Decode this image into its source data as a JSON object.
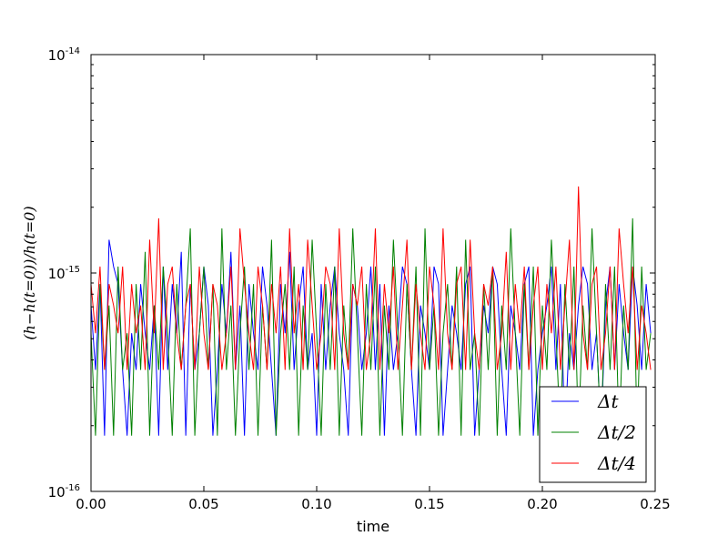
{
  "chart_data": {
    "type": "line",
    "title": "",
    "xlabel": "time",
    "ylabel": "(h−h(t=0))/h(t=0)",
    "x_scale": "linear",
    "y_scale": "log",
    "xlim": [
      0.0,
      0.25
    ],
    "ylim": [
      1e-16,
      1e-14
    ],
    "x_ticks": [
      "0.00",
      "0.05",
      "0.10",
      "0.15",
      "0.20",
      "0.25"
    ],
    "y_ticks": [
      {
        "base": "10",
        "exp": "-16"
      },
      {
        "base": "10",
        "exp": "-15"
      },
      {
        "base": "10",
        "exp": "-14"
      }
    ],
    "grid": false,
    "legend_position": "lower-right",
    "levels": [
      1.8e-16,
      3.6e-16,
      5.3e-16,
      7.1e-16,
      8.9e-16,
      1.07e-15,
      1.25e-15,
      1.42e-15,
      1.6e-15,
      1.78e-15,
      2.49e-15
    ],
    "series": [
      {
        "name": "Δt",
        "color": "#0000ff",
        "x": [
          0.0,
          0.002,
          0.004,
          0.006,
          0.008,
          0.01,
          0.012,
          0.014,
          0.016,
          0.018,
          0.02,
          0.022,
          0.024,
          0.026,
          0.028,
          0.03,
          0.032,
          0.034,
          0.036,
          0.038,
          0.04,
          0.042,
          0.044,
          0.046,
          0.048,
          0.05,
          0.052,
          0.054,
          0.056,
          0.058,
          0.06,
          0.062,
          0.064,
          0.066,
          0.068,
          0.07,
          0.072,
          0.074,
          0.076,
          0.078,
          0.08,
          0.082,
          0.084,
          0.086,
          0.088,
          0.09,
          0.092,
          0.094,
          0.096,
          0.098,
          0.1,
          0.102,
          0.104,
          0.106,
          0.108,
          0.11,
          0.112,
          0.114,
          0.116,
          0.118,
          0.12,
          0.122,
          0.124,
          0.126,
          0.128,
          0.13,
          0.132,
          0.134,
          0.136,
          0.138,
          0.14,
          0.142,
          0.144,
          0.146,
          0.148,
          0.15,
          0.152,
          0.154,
          0.156,
          0.158,
          0.16,
          0.162,
          0.164,
          0.166,
          0.168,
          0.17,
          0.172,
          0.174,
          0.176,
          0.178,
          0.18,
          0.182,
          0.184,
          0.186,
          0.188,
          0.19,
          0.192,
          0.194,
          0.196,
          0.198,
          0.2,
          0.202,
          0.204,
          0.206,
          0.208,
          0.21,
          0.212,
          0.214,
          0.216,
          0.218,
          0.22,
          0.222,
          0.224,
          0.226,
          0.228,
          0.23,
          0.232,
          0.234,
          0.236,
          0.238,
          0.24,
          0.242,
          0.244,
          0.246,
          0.248
        ],
        "y": [
          7.1e-16,
          3.6e-16,
          8.9e-16,
          1.8e-16,
          1.42e-15,
          1.07e-15,
          8.9e-16,
          3.6e-16,
          1.8e-16,
          5.3e-16,
          3.6e-16,
          8.9e-16,
          5.3e-16,
          3.6e-16,
          7.1e-16,
          1.8e-16,
          1.07e-15,
          3.6e-16,
          8.9e-16,
          5.3e-16,
          1.25e-15,
          1.8e-16,
          8.9e-16,
          3.6e-16,
          5.3e-16,
          1.07e-15,
          7.1e-16,
          1.8e-16,
          3.6e-16,
          8.9e-16,
          5.3e-16,
          1.25e-15,
          3.6e-16,
          7.1e-16,
          1.8e-16,
          8.9e-16,
          5.3e-16,
          3.6e-16,
          1.07e-15,
          7.1e-16,
          3.6e-16,
          1.8e-16,
          8.9e-16,
          5.3e-16,
          1.25e-15,
          3.6e-16,
          7.1e-16,
          1.07e-15,
          3.6e-16,
          5.3e-16,
          1.8e-16,
          8.9e-16,
          3.6e-16,
          7.1e-16,
          1.07e-15,
          5.3e-16,
          3.6e-16,
          1.8e-16,
          8.9e-16,
          7.1e-16,
          3.6e-16,
          5.3e-16,
          1.07e-15,
          3.6e-16,
          8.9e-16,
          1.8e-16,
          7.1e-16,
          3.6e-16,
          5.3e-16,
          1.07e-15,
          8.9e-16,
          3.6e-16,
          1.8e-16,
          7.1e-16,
          5.3e-16,
          3.6e-16,
          1.07e-15,
          8.9e-16,
          1.8e-16,
          3.6e-16,
          7.1e-16,
          5.3e-16,
          3.6e-16,
          8.9e-16,
          1.07e-15,
          1.8e-16,
          3.6e-16,
          7.1e-16,
          5.3e-16,
          1.07e-15,
          8.9e-16,
          3.6e-16,
          1.8e-16,
          7.1e-16,
          5.3e-16,
          3.6e-16,
          8.9e-16,
          1.07e-15,
          1.8e-16,
          3.6e-16,
          5.3e-16,
          7.1e-16,
          1.07e-15,
          3.6e-16,
          8.9e-16,
          1.8e-16,
          5.3e-16,
          3.6e-16,
          7.1e-16,
          1.07e-15,
          8.9e-16,
          3.6e-16,
          5.3e-16,
          1.8e-16,
          7.1e-16,
          1.07e-15,
          3.6e-16,
          8.9e-16,
          5.3e-16,
          3.6e-16,
          1.07e-15,
          7.1e-16,
          3.6e-16,
          8.9e-16,
          5.3e-16
        ]
      },
      {
        "name": "Δt/2",
        "color": "#008000",
        "x": [
          0.0,
          0.002,
          0.004,
          0.006,
          0.008,
          0.01,
          0.012,
          0.014,
          0.016,
          0.018,
          0.02,
          0.022,
          0.024,
          0.026,
          0.028,
          0.03,
          0.032,
          0.034,
          0.036,
          0.038,
          0.04,
          0.042,
          0.044,
          0.046,
          0.048,
          0.05,
          0.052,
          0.054,
          0.056,
          0.058,
          0.06,
          0.062,
          0.064,
          0.066,
          0.068,
          0.07,
          0.072,
          0.074,
          0.076,
          0.078,
          0.08,
          0.082,
          0.084,
          0.086,
          0.088,
          0.09,
          0.092,
          0.094,
          0.096,
          0.098,
          0.1,
          0.102,
          0.104,
          0.106,
          0.108,
          0.11,
          0.112,
          0.114,
          0.116,
          0.118,
          0.12,
          0.122,
          0.124,
          0.126,
          0.128,
          0.13,
          0.132,
          0.134,
          0.136,
          0.138,
          0.14,
          0.142,
          0.144,
          0.146,
          0.148,
          0.15,
          0.152,
          0.154,
          0.156,
          0.158,
          0.16,
          0.162,
          0.164,
          0.166,
          0.168,
          0.17,
          0.172,
          0.174,
          0.176,
          0.178,
          0.18,
          0.182,
          0.184,
          0.186,
          0.188,
          0.19,
          0.192,
          0.194,
          0.196,
          0.198,
          0.2,
          0.202,
          0.204,
          0.206,
          0.208,
          0.21,
          0.212,
          0.214,
          0.216,
          0.218,
          0.22,
          0.222,
          0.224,
          0.226,
          0.228,
          0.23,
          0.232,
          0.234,
          0.236,
          0.238,
          0.24,
          0.242,
          0.244,
          0.246,
          0.248
        ],
        "y": [
          5.3e-16,
          1.8e-16,
          8.9e-16,
          3.6e-16,
          7.1e-16,
          1.8e-16,
          1.07e-15,
          3.6e-16,
          5.3e-16,
          1.8e-16,
          8.9e-16,
          3.6e-16,
          1.25e-15,
          1.8e-16,
          7.1e-16,
          3.6e-16,
          1.07e-15,
          5.3e-16,
          1.8e-16,
          8.9e-16,
          3.6e-16,
          7.1e-16,
          1.6e-15,
          1.8e-16,
          5.3e-16,
          1.07e-15,
          3.6e-16,
          8.9e-16,
          1.8e-16,
          1.6e-15,
          3.6e-16,
          7.1e-16,
          1.8e-16,
          5.3e-16,
          1.07e-15,
          3.6e-16,
          8.9e-16,
          1.8e-16,
          7.1e-16,
          3.6e-16,
          1.42e-15,
          1.8e-16,
          5.3e-16,
          8.9e-16,
          3.6e-16,
          1.07e-15,
          1.8e-16,
          7.1e-16,
          3.6e-16,
          1.42e-15,
          5.3e-16,
          1.8e-16,
          8.9e-16,
          3.6e-16,
          1.07e-15,
          1.8e-16,
          7.1e-16,
          3.6e-16,
          1.6e-15,
          5.3e-16,
          1.8e-16,
          8.9e-16,
          3.6e-16,
          1.07e-15,
          1.8e-16,
          7.1e-16,
          3.6e-16,
          1.42e-15,
          5.3e-16,
          1.8e-16,
          8.9e-16,
          3.6e-16,
          1.07e-15,
          1.8e-16,
          1.6e-15,
          3.6e-16,
          7.1e-16,
          1.8e-16,
          5.3e-16,
          8.9e-16,
          3.6e-16,
          1.07e-15,
          1.8e-16,
          1.42e-15,
          3.6e-16,
          5.3e-16,
          1.8e-16,
          8.9e-16,
          3.6e-16,
          1.07e-15,
          1.8e-16,
          7.1e-16,
          3.6e-16,
          1.6e-15,
          5.3e-16,
          1.8e-16,
          8.9e-16,
          3.6e-16,
          1.07e-15,
          1.8e-16,
          7.1e-16,
          3.6e-16,
          1.42e-15,
          5.3e-16,
          1.8e-16,
          8.9e-16,
          3.6e-16,
          1.07e-15,
          1.8e-16,
          7.1e-16,
          3.6e-16,
          1.6e-15,
          5.3e-16,
          1.8e-16,
          8.9e-16,
          3.6e-16,
          1.07e-15,
          1.8e-16,
          7.1e-16,
          3.6e-16,
          1.78e-15,
          1.8e-16,
          1.07e-15,
          3.6e-16,
          5.3e-16
        ]
      },
      {
        "name": "Δt/4",
        "color": "#ff0000",
        "x": [
          0.0,
          0.002,
          0.004,
          0.006,
          0.008,
          0.01,
          0.012,
          0.014,
          0.016,
          0.018,
          0.02,
          0.022,
          0.024,
          0.026,
          0.028,
          0.03,
          0.032,
          0.034,
          0.036,
          0.038,
          0.04,
          0.042,
          0.044,
          0.046,
          0.048,
          0.05,
          0.052,
          0.054,
          0.056,
          0.058,
          0.06,
          0.062,
          0.064,
          0.066,
          0.068,
          0.07,
          0.072,
          0.074,
          0.076,
          0.078,
          0.08,
          0.082,
          0.084,
          0.086,
          0.088,
          0.09,
          0.092,
          0.094,
          0.096,
          0.098,
          0.1,
          0.102,
          0.104,
          0.106,
          0.108,
          0.11,
          0.112,
          0.114,
          0.116,
          0.118,
          0.12,
          0.122,
          0.124,
          0.126,
          0.128,
          0.13,
          0.132,
          0.134,
          0.136,
          0.138,
          0.14,
          0.142,
          0.144,
          0.146,
          0.148,
          0.15,
          0.152,
          0.154,
          0.156,
          0.158,
          0.16,
          0.162,
          0.164,
          0.166,
          0.168,
          0.17,
          0.172,
          0.174,
          0.176,
          0.178,
          0.18,
          0.182,
          0.184,
          0.186,
          0.188,
          0.19,
          0.192,
          0.194,
          0.196,
          0.198,
          0.2,
          0.202,
          0.204,
          0.206,
          0.208,
          0.21,
          0.212,
          0.214,
          0.216,
          0.218,
          0.22,
          0.222,
          0.224,
          0.226,
          0.228,
          0.23,
          0.232,
          0.234,
          0.236,
          0.238,
          0.24,
          0.242,
          0.244,
          0.246,
          0.248
        ],
        "y": [
          8.9e-16,
          5.3e-16,
          1.07e-15,
          3.6e-16,
          8.9e-16,
          7.1e-16,
          5.3e-16,
          1.07e-15,
          3.6e-16,
          8.9e-16,
          5.3e-16,
          7.1e-16,
          3.6e-16,
          1.42e-15,
          5.3e-16,
          1.78e-15,
          3.6e-16,
          8.9e-16,
          1.07e-15,
          5.3e-16,
          3.6e-16,
          7.1e-16,
          8.9e-16,
          3.6e-16,
          1.07e-15,
          5.3e-16,
          3.6e-16,
          8.9e-16,
          7.1e-16,
          3.6e-16,
          5.3e-16,
          1.07e-15,
          3.6e-16,
          1.6e-15,
          8.9e-16,
          5.3e-16,
          3.6e-16,
          1.07e-15,
          7.1e-16,
          3.6e-16,
          8.9e-16,
          5.3e-16,
          1.07e-15,
          3.6e-16,
          1.6e-15,
          5.3e-16,
          8.9e-16,
          3.6e-16,
          1.42e-15,
          7.1e-16,
          3.6e-16,
          5.3e-16,
          1.07e-15,
          8.9e-16,
          3.6e-16,
          1.6e-15,
          5.3e-16,
          3.6e-16,
          8.9e-16,
          7.1e-16,
          1.07e-15,
          3.6e-16,
          5.3e-16,
          1.6e-15,
          3.6e-16,
          8.9e-16,
          5.3e-16,
          1.07e-15,
          3.6e-16,
          7.1e-16,
          1.42e-15,
          3.6e-16,
          8.9e-16,
          5.3e-16,
          3.6e-16,
          1.07e-15,
          7.1e-16,
          3.6e-16,
          1.6e-15,
          5.3e-16,
          3.6e-16,
          8.9e-16,
          1.07e-15,
          3.6e-16,
          1.42e-15,
          5.3e-16,
          3.6e-16,
          8.9e-16,
          7.1e-16,
          1.07e-15,
          3.6e-16,
          5.3e-16,
          1.25e-15,
          3.6e-16,
          8.9e-16,
          5.3e-16,
          1.07e-15,
          3.6e-16,
          7.1e-16,
          1.07e-15,
          3.6e-16,
          8.9e-16,
          5.3e-16,
          1.07e-15,
          3.6e-16,
          7.1e-16,
          1.42e-15,
          3.6e-16,
          2.49e-15,
          5.3e-16,
          3.6e-16,
          8.9e-16,
          1.07e-15,
          3.6e-16,
          5.3e-16,
          1.07e-15,
          3.6e-16,
          1.6e-15,
          8.9e-16,
          5.3e-16,
          1.07e-15,
          3.6e-16,
          7.1e-16,
          5.3e-16,
          3.6e-16
        ]
      }
    ]
  }
}
